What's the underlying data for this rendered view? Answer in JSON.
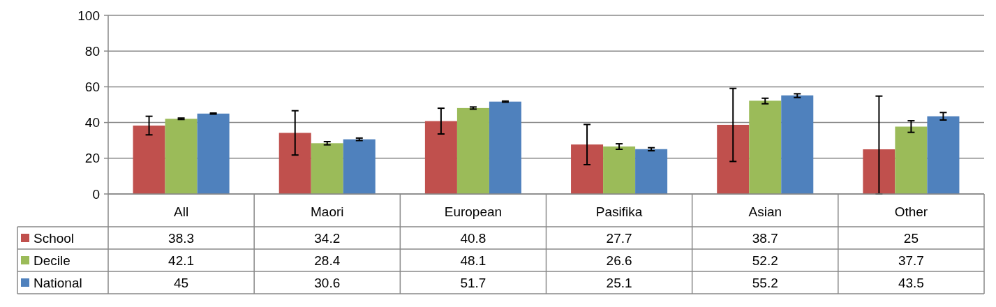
{
  "chart_data": {
    "type": "bar",
    "categories": [
      "All",
      "Maori",
      "European",
      "Pasifika",
      "Asian",
      "Other"
    ],
    "series": [
      {
        "name": "School",
        "color": "#c0504d",
        "values": [
          38.3,
          34.2,
          40.8,
          27.7,
          38.7,
          25
        ],
        "errors": [
          [
            33.1,
            43.5
          ],
          [
            21.8,
            46.6
          ],
          [
            33.6,
            48
          ],
          [
            16.4,
            38.9
          ],
          [
            18.2,
            59.1
          ],
          [
            0,
            54.8
          ]
        ]
      },
      {
        "name": "Decile",
        "color": "#9bbb59",
        "values": [
          42.1,
          28.4,
          48.1,
          26.6,
          52.2,
          37.7
        ],
        "errors": [
          [
            41.7,
            42.5
          ],
          [
            27.5,
            29.3
          ],
          [
            47.5,
            48.7
          ],
          [
            25,
            28.1
          ],
          [
            50.5,
            53.6
          ],
          [
            34.5,
            41
          ]
        ]
      },
      {
        "name": "National",
        "color": "#4f81bd",
        "values": [
          45,
          30.6,
          51.7,
          25.1,
          55.2,
          43.5
        ],
        "errors": [
          [
            44.7,
            45.3
          ],
          [
            29.9,
            31.3
          ],
          [
            51.4,
            52
          ],
          [
            24.2,
            25.9
          ],
          [
            54,
            56.1
          ],
          [
            41.4,
            45.6
          ]
        ]
      }
    ],
    "ylim": [
      0,
      100
    ],
    "yticks": [
      0,
      20,
      40,
      60,
      80,
      100
    ],
    "grid": "y",
    "data_labels": true,
    "legend": "bottom left"
  }
}
